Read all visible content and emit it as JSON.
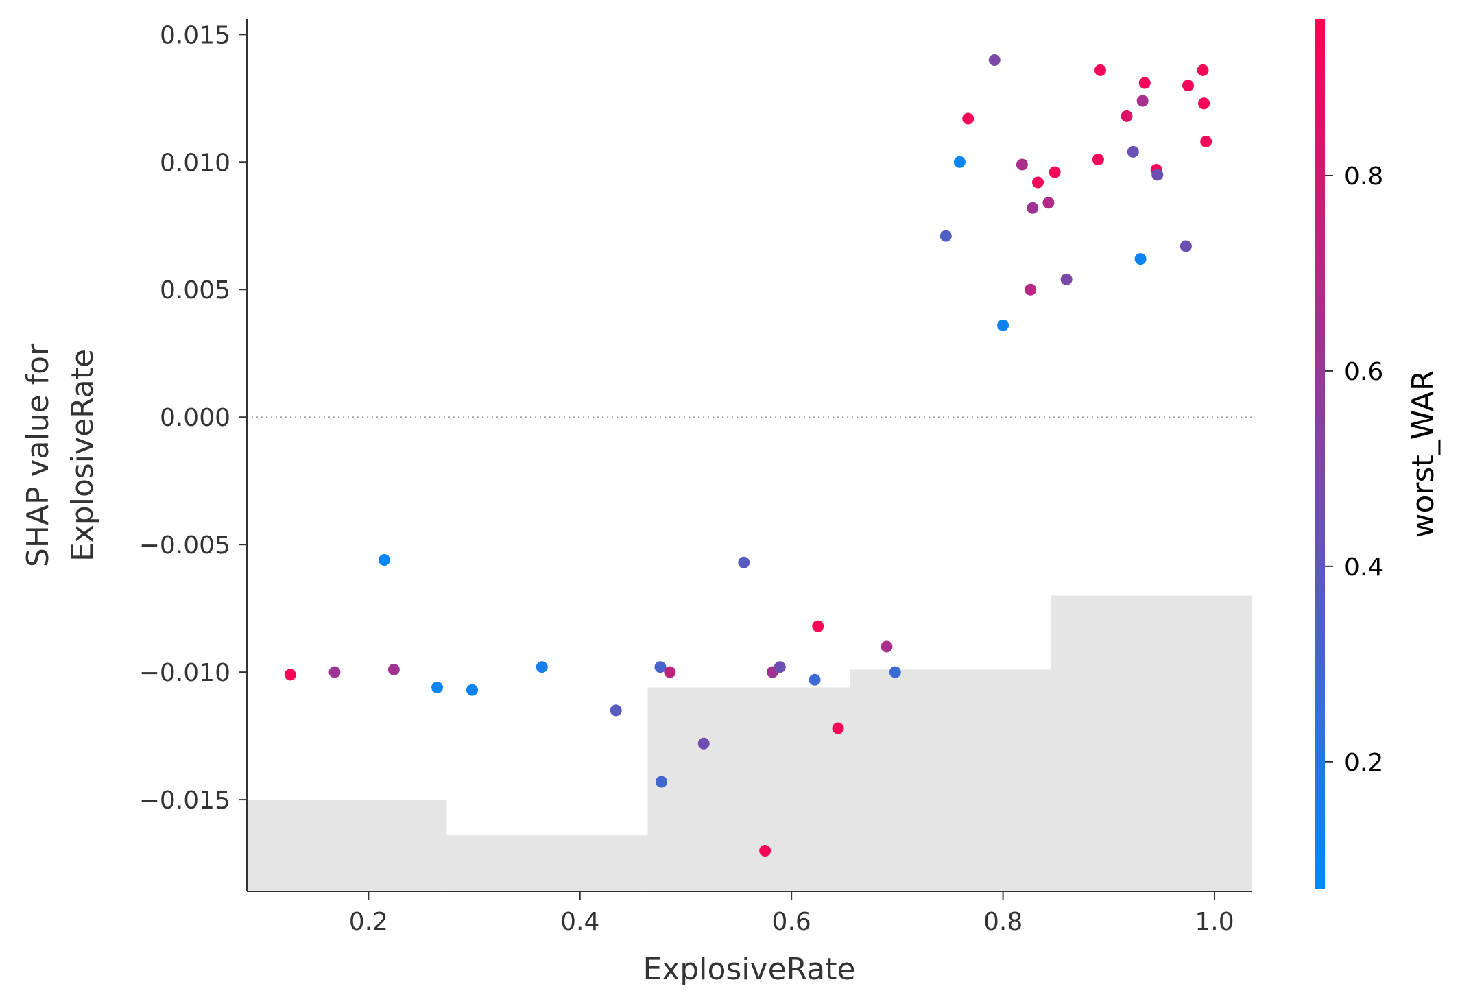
{
  "chart_data": {
    "type": "scatter",
    "title": "",
    "xlabel": "ExplosiveRate",
    "ylabel_lines": [
      "SHAP value for",
      "ExplosiveRate"
    ],
    "xlim": [
      0.085,
      1.035
    ],
    "ylim": [
      -0.0186,
      0.0156
    ],
    "x_ticks": [
      0.2,
      0.4,
      0.6,
      0.8,
      1.0
    ],
    "x_tick_labels": [
      "0.2",
      "0.4",
      "0.6",
      "0.8",
      "1.0"
    ],
    "y_ticks": [
      0.015,
      0.01,
      0.005,
      0.0,
      -0.005,
      -0.01,
      -0.015
    ],
    "y_tick_labels": [
      "0.015",
      "0.010",
      "0.005",
      "0.000",
      "−0.005",
      "−0.010",
      "−0.015"
    ],
    "zero_line": true,
    "histogram_background": {
      "bins": [
        {
          "x0": 0.085,
          "x1": 0.274,
          "top": -0.015
        },
        {
          "x0": 0.274,
          "x1": 0.464,
          "top": -0.0164
        },
        {
          "x0": 0.464,
          "x1": 0.655,
          "top": -0.0106
        },
        {
          "x0": 0.655,
          "x1": 0.845,
          "top": -0.0099
        },
        {
          "x0": 0.845,
          "x1": 1.035,
          "top": -0.007
        }
      ],
      "color": "#e5e5e5"
    },
    "colorbar": {
      "label": "worst_WAR",
      "range": [
        0.07,
        0.96
      ],
      "ticks": [
        0.2,
        0.4,
        0.6,
        0.8
      ],
      "tick_labels": [
        "0.2",
        "0.4",
        "0.6",
        "0.8"
      ],
      "colors": [
        "#008afb",
        "#ff0052"
      ]
    },
    "points": [
      {
        "x": 0.126,
        "y": -0.0101,
        "c": 0.94
      },
      {
        "x": 0.168,
        "y": -0.01,
        "c": 0.62
      },
      {
        "x": 0.224,
        "y": -0.0099,
        "c": 0.63
      },
      {
        "x": 0.215,
        "y": -0.0056,
        "c": 0.1
      },
      {
        "x": 0.265,
        "y": -0.0106,
        "c": 0.1
      },
      {
        "x": 0.298,
        "y": -0.0107,
        "c": 0.11
      },
      {
        "x": 0.364,
        "y": -0.0098,
        "c": 0.15
      },
      {
        "x": 0.434,
        "y": -0.0115,
        "c": 0.38
      },
      {
        "x": 0.476,
        "y": -0.0098,
        "c": 0.32
      },
      {
        "x": 0.485,
        "y": -0.01,
        "c": 0.73
      },
      {
        "x": 0.477,
        "y": -0.0143,
        "c": 0.3
      },
      {
        "x": 0.517,
        "y": -0.0128,
        "c": 0.46
      },
      {
        "x": 0.555,
        "y": -0.0057,
        "c": 0.38
      },
      {
        "x": 0.575,
        "y": -0.017,
        "c": 0.93
      },
      {
        "x": 0.582,
        "y": -0.01,
        "c": 0.63
      },
      {
        "x": 0.589,
        "y": -0.0098,
        "c": 0.45
      },
      {
        "x": 0.622,
        "y": -0.0103,
        "c": 0.28
      },
      {
        "x": 0.625,
        "y": -0.0082,
        "c": 0.93
      },
      {
        "x": 0.644,
        "y": -0.0122,
        "c": 0.93
      },
      {
        "x": 0.69,
        "y": -0.009,
        "c": 0.66
      },
      {
        "x": 0.698,
        "y": -0.01,
        "c": 0.28
      },
      {
        "x": 0.746,
        "y": 0.0071,
        "c": 0.35
      },
      {
        "x": 0.759,
        "y": 0.01,
        "c": 0.1
      },
      {
        "x": 0.767,
        "y": 0.0117,
        "c": 0.93
      },
      {
        "x": 0.792,
        "y": 0.014,
        "c": 0.5
      },
      {
        "x": 0.8,
        "y": 0.0036,
        "c": 0.12
      },
      {
        "x": 0.818,
        "y": 0.0099,
        "c": 0.66
      },
      {
        "x": 0.826,
        "y": 0.005,
        "c": 0.7
      },
      {
        "x": 0.828,
        "y": 0.0082,
        "c": 0.62
      },
      {
        "x": 0.833,
        "y": 0.0092,
        "c": 0.93
      },
      {
        "x": 0.843,
        "y": 0.0084,
        "c": 0.68
      },
      {
        "x": 0.849,
        "y": 0.0096,
        "c": 0.93
      },
      {
        "x": 0.86,
        "y": 0.0054,
        "c": 0.5
      },
      {
        "x": 0.89,
        "y": 0.0101,
        "c": 0.93
      },
      {
        "x": 0.892,
        "y": 0.0136,
        "c": 0.93
      },
      {
        "x": 0.917,
        "y": 0.0118,
        "c": 0.85
      },
      {
        "x": 0.923,
        "y": 0.0104,
        "c": 0.44
      },
      {
        "x": 0.93,
        "y": 0.0062,
        "c": 0.12
      },
      {
        "x": 0.932,
        "y": 0.0124,
        "c": 0.65
      },
      {
        "x": 0.934,
        "y": 0.0131,
        "c": 0.93
      },
      {
        "x": 0.945,
        "y": 0.0097,
        "c": 0.93
      },
      {
        "x": 0.946,
        "y": 0.0095,
        "c": 0.45
      },
      {
        "x": 0.973,
        "y": 0.0067,
        "c": 0.45
      },
      {
        "x": 0.975,
        "y": 0.013,
        "c": 0.93
      },
      {
        "x": 0.989,
        "y": 0.0136,
        "c": 0.93
      },
      {
        "x": 0.99,
        "y": 0.0123,
        "c": 0.93
      },
      {
        "x": 0.992,
        "y": 0.0108,
        "c": 0.93
      }
    ]
  }
}
